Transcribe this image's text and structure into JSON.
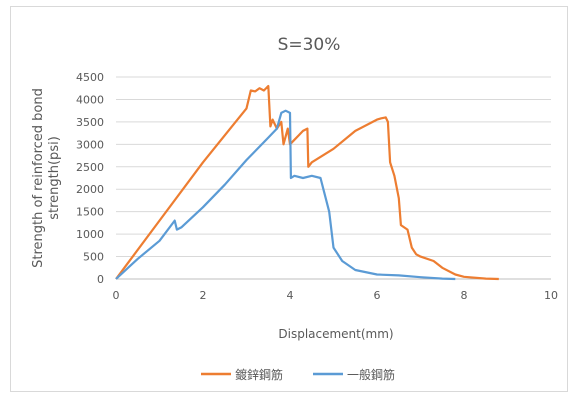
{
  "chart_data": {
    "type": "line",
    "title": "S=30%",
    "xlabel": "Displacement(mm)",
    "ylabel_lines": [
      "Strength of reinforced bond",
      "strength(psi)"
    ],
    "xlim": [
      0,
      10
    ],
    "ylim": [
      0,
      4500
    ],
    "xticks": [
      0,
      2,
      4,
      6,
      8,
      10
    ],
    "yticks": [
      0,
      500,
      1000,
      1500,
      2000,
      2500,
      3000,
      3500,
      4000,
      4500
    ],
    "grid": "horizontal",
    "legend_position": "bottom",
    "series": [
      {
        "name": "鍍鋅鋼筋",
        "color": "#ED7D31",
        "points": [
          [
            0,
            0
          ],
          [
            1,
            1300
          ],
          [
            2,
            2600
          ],
          [
            3,
            3800
          ],
          [
            3.1,
            4200
          ],
          [
            3.2,
            4180
          ],
          [
            3.3,
            4250
          ],
          [
            3.4,
            4200
          ],
          [
            3.5,
            4300
          ],
          [
            3.55,
            3400
          ],
          [
            3.6,
            3550
          ],
          [
            3.7,
            3350
          ],
          [
            3.8,
            3500
          ],
          [
            3.85,
            3000
          ],
          [
            3.95,
            3350
          ],
          [
            4.0,
            3000
          ],
          [
            4.1,
            3100
          ],
          [
            4.2,
            3200
          ],
          [
            4.3,
            3300
          ],
          [
            4.4,
            3350
          ],
          [
            4.42,
            2500
          ],
          [
            4.5,
            2600
          ],
          [
            5.0,
            2900
          ],
          [
            5.5,
            3300
          ],
          [
            6.0,
            3550
          ],
          [
            6.1,
            3580
          ],
          [
            6.2,
            3600
          ],
          [
            6.25,
            3500
          ],
          [
            6.3,
            2600
          ],
          [
            6.4,
            2300
          ],
          [
            6.5,
            1800
          ],
          [
            6.55,
            1200
          ],
          [
            6.7,
            1100
          ],
          [
            6.8,
            700
          ],
          [
            6.9,
            550
          ],
          [
            7.0,
            500
          ],
          [
            7.3,
            400
          ],
          [
            7.5,
            250
          ],
          [
            7.8,
            100
          ],
          [
            8.0,
            50
          ],
          [
            8.5,
            10
          ],
          [
            8.8,
            0
          ]
        ]
      },
      {
        "name": "一般鋼筋",
        "color": "#5B9BD5",
        "points": [
          [
            0,
            0
          ],
          [
            0.5,
            450
          ],
          [
            1.0,
            850
          ],
          [
            1.35,
            1300
          ],
          [
            1.4,
            1100
          ],
          [
            1.5,
            1150
          ],
          [
            2.0,
            1600
          ],
          [
            2.5,
            2100
          ],
          [
            3.0,
            2650
          ],
          [
            3.5,
            3150
          ],
          [
            3.7,
            3350
          ],
          [
            3.8,
            3700
          ],
          [
            3.9,
            3750
          ],
          [
            4.0,
            3700
          ],
          [
            4.02,
            2250
          ],
          [
            4.1,
            2300
          ],
          [
            4.3,
            2250
          ],
          [
            4.5,
            2300
          ],
          [
            4.7,
            2250
          ],
          [
            4.9,
            1500
          ],
          [
            5.0,
            700
          ],
          [
            5.2,
            400
          ],
          [
            5.5,
            200
          ],
          [
            6.0,
            100
          ],
          [
            6.5,
            80
          ],
          [
            7.0,
            40
          ],
          [
            7.5,
            10
          ],
          [
            7.8,
            0
          ]
        ]
      }
    ]
  }
}
